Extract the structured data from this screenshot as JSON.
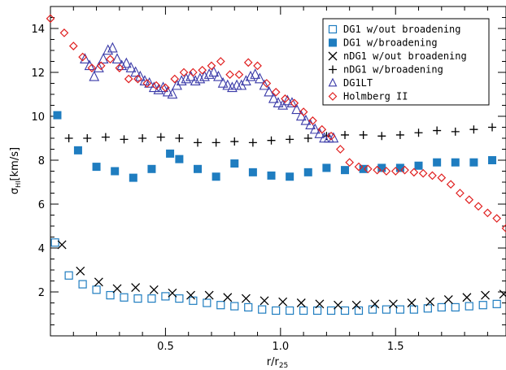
{
  "chart_data": {
    "type": "scatter",
    "xlabel_main": "r/r",
    "xlabel_sub": "25",
    "ylabel_main": "σ",
    "ylabel_sub": "HI",
    "ylabel_unit": "[km/s]",
    "xlim": [
      0.0,
      1.98
    ],
    "ylim": [
      0,
      15
    ],
    "x_major_ticks": [
      0.5,
      1.0,
      1.5
    ],
    "x_tick_labels": [
      "0.5",
      "1.0",
      "1.5"
    ],
    "y_major_ticks": [
      2,
      4,
      6,
      8,
      10,
      12,
      14
    ],
    "y_tick_labels": [
      "2",
      "4",
      "6",
      "8",
      "10",
      "12",
      "14"
    ],
    "grid": false,
    "legend_position": "top-right",
    "colors": {
      "blue": "#1f7dc0",
      "black": "#000000",
      "navy": "#3a3aa8",
      "red": "#e02020"
    },
    "series": [
      {
        "name": "DG1 w/out broadening",
        "marker": "open-square",
        "color": "#1f7dc0",
        "x": [
          0.02,
          0.08,
          0.14,
          0.2,
          0.26,
          0.32,
          0.38,
          0.44,
          0.5,
          0.56,
          0.62,
          0.68,
          0.74,
          0.8,
          0.86,
          0.92,
          0.98,
          1.04,
          1.1,
          1.16,
          1.22,
          1.28,
          1.34,
          1.4,
          1.46,
          1.52,
          1.58,
          1.64,
          1.7,
          1.76,
          1.82,
          1.88,
          1.94
        ],
        "y": [
          4.25,
          2.75,
          2.35,
          2.1,
          1.85,
          1.75,
          1.7,
          1.7,
          1.8,
          1.7,
          1.6,
          1.5,
          1.4,
          1.35,
          1.3,
          1.2,
          1.15,
          1.15,
          1.15,
          1.15,
          1.15,
          1.15,
          1.15,
          1.2,
          1.2,
          1.2,
          1.2,
          1.25,
          1.3,
          1.3,
          1.35,
          1.4,
          1.45
        ]
      },
      {
        "name": "DG1 w/broadening",
        "marker": "filled-square",
        "color": "#1f7dc0",
        "x": [
          0.03,
          0.12,
          0.2,
          0.28,
          0.36,
          0.44,
          0.52,
          0.56,
          0.64,
          0.72,
          0.8,
          0.88,
          0.96,
          1.04,
          1.12,
          1.2,
          1.28,
          1.36,
          1.44,
          1.52,
          1.6,
          1.68,
          1.76,
          1.84,
          1.92
        ],
        "y": [
          10.05,
          8.45,
          7.7,
          7.5,
          7.2,
          7.6,
          8.3,
          8.05,
          7.6,
          7.25,
          7.85,
          7.45,
          7.3,
          7.25,
          7.45,
          7.65,
          7.55,
          7.6,
          7.65,
          7.65,
          7.75,
          7.9,
          7.9,
          7.9,
          8.0
        ]
      },
      {
        "name": "nDG1 w/out broadening",
        "marker": "x",
        "color": "#000000",
        "x": [
          0.05,
          0.13,
          0.21,
          0.29,
          0.37,
          0.45,
          0.53,
          0.61,
          0.69,
          0.77,
          0.85,
          0.93,
          1.01,
          1.09,
          1.17,
          1.25,
          1.33,
          1.41,
          1.49,
          1.57,
          1.65,
          1.73,
          1.81,
          1.89,
          1.97
        ],
        "y": [
          4.15,
          2.95,
          2.45,
          2.15,
          2.2,
          2.1,
          1.95,
          1.85,
          1.85,
          1.75,
          1.7,
          1.6,
          1.55,
          1.5,
          1.45,
          1.4,
          1.4,
          1.45,
          1.45,
          1.5,
          1.55,
          1.65,
          1.75,
          1.85,
          1.9
        ]
      },
      {
        "name": "nDG1 w/broadening",
        "marker": "plus",
        "color": "#000000",
        "x": [
          0.08,
          0.16,
          0.24,
          0.32,
          0.4,
          0.48,
          0.56,
          0.64,
          0.72,
          0.8,
          0.88,
          0.96,
          1.04,
          1.12,
          1.2,
          1.28,
          1.36,
          1.44,
          1.52,
          1.6,
          1.68,
          1.76,
          1.84,
          1.92
        ],
        "y": [
          9.0,
          9.0,
          9.05,
          8.95,
          9.0,
          9.05,
          9.0,
          8.8,
          8.8,
          8.85,
          8.8,
          8.9,
          8.95,
          9.0,
          9.1,
          9.15,
          9.15,
          9.1,
          9.15,
          9.25,
          9.35,
          9.3,
          9.4,
          9.5
        ]
      },
      {
        "name": "DG1LT",
        "marker": "open-triangle",
        "color": "#3a3aa8",
        "x": [
          0.15,
          0.17,
          0.19,
          0.21,
          0.23,
          0.25,
          0.27,
          0.29,
          0.31,
          0.33,
          0.35,
          0.37,
          0.39,
          0.41,
          0.43,
          0.45,
          0.47,
          0.49,
          0.51,
          0.53,
          0.55,
          0.57,
          0.59,
          0.61,
          0.63,
          0.65,
          0.67,
          0.69,
          0.71,
          0.73,
          0.75,
          0.77,
          0.79,
          0.81,
          0.83,
          0.85,
          0.87,
          0.89,
          0.91,
          0.93,
          0.95,
          0.97,
          0.99,
          1.01,
          1.03,
          1.05,
          1.07,
          1.09,
          1.11,
          1.13,
          1.15,
          1.17,
          1.19,
          1.21,
          1.23
        ],
        "y": [
          12.6,
          12.3,
          11.8,
          12.2,
          12.6,
          13.0,
          13.1,
          12.6,
          12.3,
          12.4,
          12.2,
          12.0,
          11.8,
          11.6,
          11.5,
          11.3,
          11.2,
          11.3,
          11.1,
          11.0,
          11.4,
          11.6,
          11.7,
          11.8,
          11.6,
          11.7,
          11.8,
          11.9,
          12.0,
          11.8,
          11.5,
          11.4,
          11.3,
          11.4,
          11.4,
          11.6,
          11.8,
          11.9,
          11.7,
          11.4,
          11.1,
          10.8,
          10.6,
          10.5,
          10.7,
          10.6,
          10.3,
          10.0,
          9.8,
          9.6,
          9.4,
          9.2,
          9.0,
          9.0,
          9.0
        ]
      },
      {
        "name": "Holmberg II",
        "marker": "open-diamond",
        "color": "#e02020",
        "x": [
          0.0,
          0.06,
          0.1,
          0.14,
          0.18,
          0.22,
          0.26,
          0.3,
          0.34,
          0.38,
          0.42,
          0.46,
          0.5,
          0.54,
          0.58,
          0.62,
          0.66,
          0.7,
          0.74,
          0.78,
          0.82,
          0.86,
          0.9,
          0.94,
          0.98,
          1.02,
          1.06,
          1.1,
          1.14,
          1.18,
          1.22,
          1.26,
          1.3,
          1.34,
          1.38,
          1.42,
          1.46,
          1.5,
          1.54,
          1.58,
          1.62,
          1.66,
          1.7,
          1.74,
          1.78,
          1.82,
          1.86,
          1.9,
          1.94,
          1.98
        ],
        "y": [
          14.45,
          13.8,
          13.2,
          12.7,
          12.2,
          12.3,
          12.6,
          12.2,
          11.7,
          11.7,
          11.5,
          11.4,
          11.3,
          11.7,
          12.0,
          12.0,
          12.1,
          12.3,
          12.5,
          11.9,
          11.9,
          12.45,
          12.3,
          11.5,
          11.1,
          10.8,
          10.6,
          10.2,
          9.8,
          9.4,
          9.1,
          8.5,
          7.9,
          7.7,
          7.6,
          7.55,
          7.5,
          7.5,
          7.55,
          7.45,
          7.4,
          7.3,
          7.2,
          6.9,
          6.5,
          6.2,
          5.9,
          5.6,
          5.35,
          4.9
        ]
      }
    ]
  }
}
